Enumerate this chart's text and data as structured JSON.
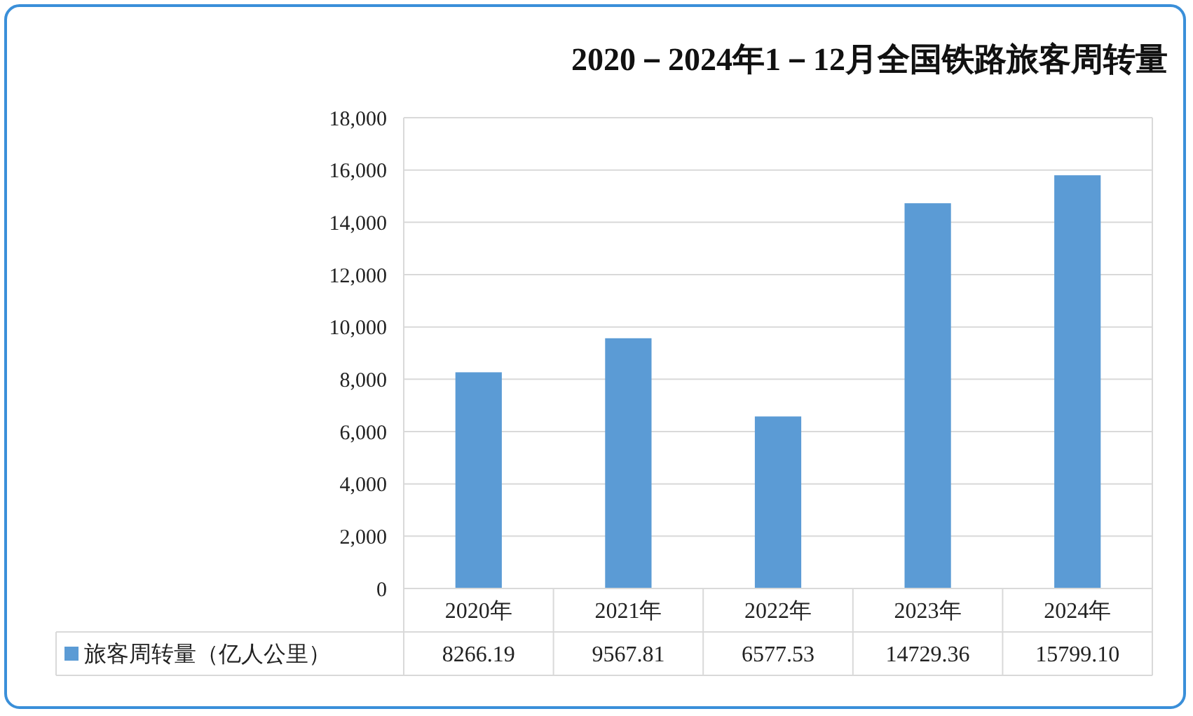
{
  "chart_data": {
    "type": "bar",
    "title": "2020－2024年1－12月全国铁路旅客周转量",
    "categories": [
      "2020年",
      "2021年",
      "2022年",
      "2023年",
      "2024年"
    ],
    "series": [
      {
        "name": "旅客周转量（亿人公里）",
        "color": "#5b9bd5",
        "values": [
          8266.19,
          9567.81,
          6577.53,
          14729.36,
          15799.1
        ],
        "value_labels": [
          "8266.19",
          "9567.81",
          "6577.53",
          "14729.36",
          "15799.10"
        ]
      }
    ],
    "ylim": [
      0,
      18000
    ],
    "yticks": [
      {
        "value": 0,
        "label": "0"
      },
      {
        "value": 2000,
        "label": "2,000"
      },
      {
        "value": 4000,
        "label": "4,000"
      },
      {
        "value": 6000,
        "label": "6,000"
      },
      {
        "value": 8000,
        "label": "8,000"
      },
      {
        "value": 10000,
        "label": "10,000"
      },
      {
        "value": 12000,
        "label": "12,000"
      },
      {
        "value": 14000,
        "label": "14,000"
      },
      {
        "value": 16000,
        "label": "16,000"
      },
      {
        "value": 18000,
        "label": "18,000"
      }
    ],
    "grid": "y",
    "legend": "bottom"
  }
}
